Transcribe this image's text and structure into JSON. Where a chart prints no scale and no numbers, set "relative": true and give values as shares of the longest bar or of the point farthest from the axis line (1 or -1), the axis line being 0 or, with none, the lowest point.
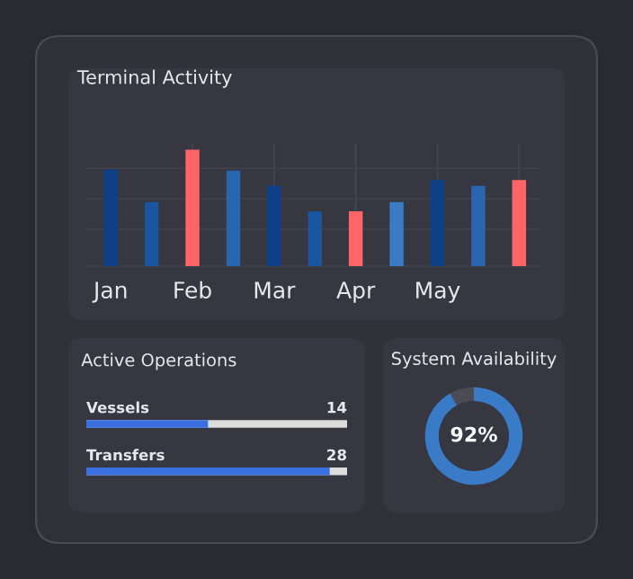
{
  "chart_data": [
    {
      "type": "bar",
      "title": "Terminal Activity",
      "relative": true,
      "grid": true,
      "categories": [
        "Jan",
        null,
        "Feb",
        null,
        "Mar",
        null,
        "Apr",
        null,
        "May",
        null,
        null
      ],
      "values": [
        0.83,
        0.55,
        1,
        0.82,
        0.69,
        0.47,
        0.47,
        0.55,
        0.74,
        0.69,
        0.74
      ],
      "colors": [
        "#0d3f86",
        "#1a56a0",
        "#ff6466",
        "#2a66b0",
        "#0d3f86",
        "#1a56a0",
        "#ff6466",
        "#3a7bc8",
        "#0d3f86",
        "#2a66b0",
        "#ff6466"
      ]
    },
    {
      "type": "bar",
      "orientation": "horizontal",
      "title": "Active Operations",
      "categories": [
        "Vessels",
        "Transfers"
      ],
      "values": [
        14,
        28
      ],
      "color": "#3a6fe0",
      "xlim": [
        0,
        30
      ],
      "data_labels": true
    },
    {
      "type": "donut",
      "title": "System Availability",
      "categories": [
        null,
        null
      ],
      "values": [
        92,
        8
      ],
      "colors": [
        "#3a7bc8",
        "#4a4b55"
      ],
      "value_labels": [
        "92%",
        null
      ]
    }
  ]
}
